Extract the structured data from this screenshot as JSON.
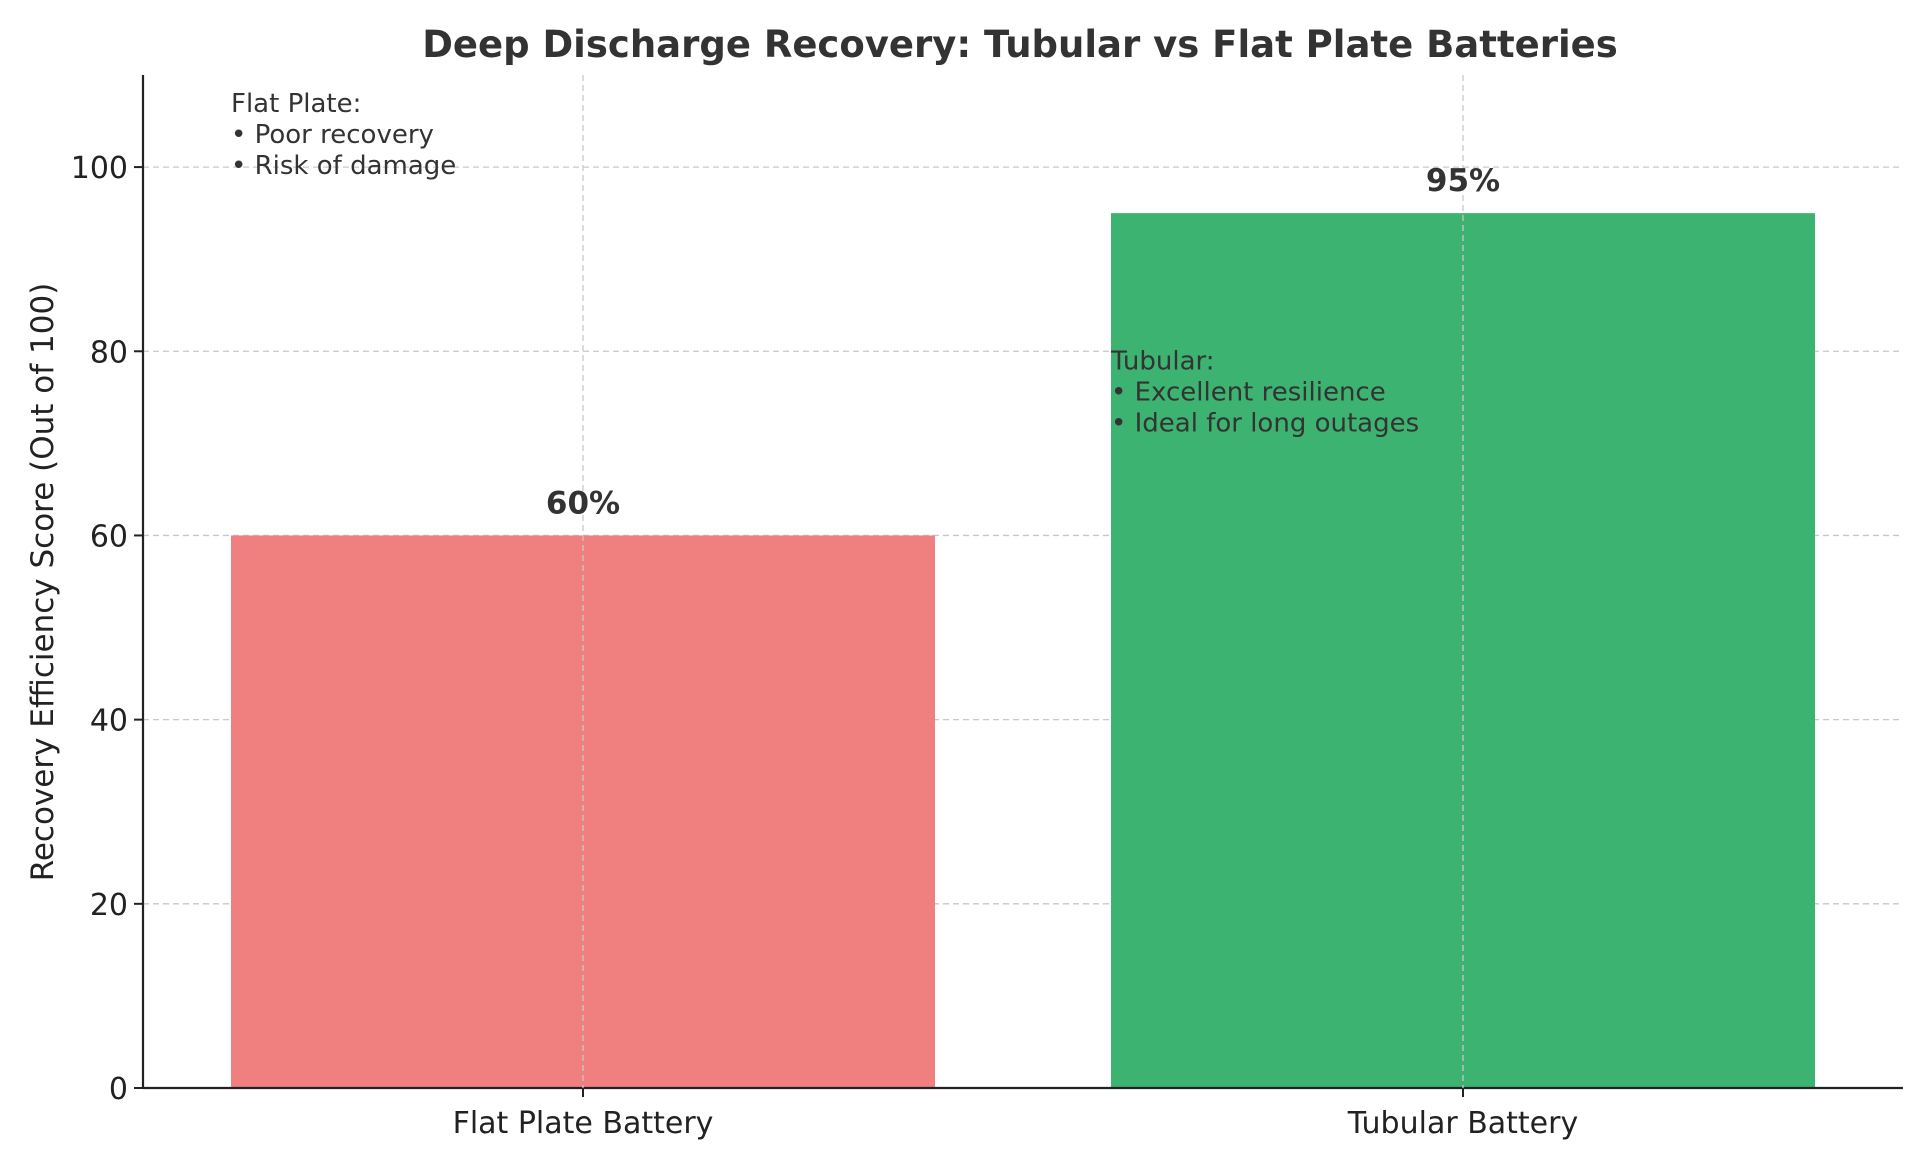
{
  "chart_data": {
    "type": "bar",
    "title": "Deep Discharge Recovery: Tubular vs Flat Plate Batteries",
    "xlabel": "",
    "ylabel": "Recovery Efficiency Score (Out of 100)",
    "categories": [
      "Flat Plate Battery",
      "Tubular Battery"
    ],
    "values": [
      60,
      95
    ],
    "value_labels": [
      "60%",
      "95%"
    ],
    "colors": [
      "#f08080",
      "#3cb371"
    ],
    "ylim": [
      0,
      110
    ],
    "yticks": [
      0,
      20,
      40,
      60,
      80,
      100
    ],
    "grid": true,
    "annotations": [
      {
        "lines": [
          "Flat Plate:",
          "• Poor recovery",
          "• Risk of damage"
        ],
        "category_index": 0,
        "y": 106
      },
      {
        "lines": [
          "Tubular:",
          "• Excellent resilience",
          "• Ideal for long outages"
        ],
        "category_index": 1,
        "y": 78
      }
    ]
  }
}
